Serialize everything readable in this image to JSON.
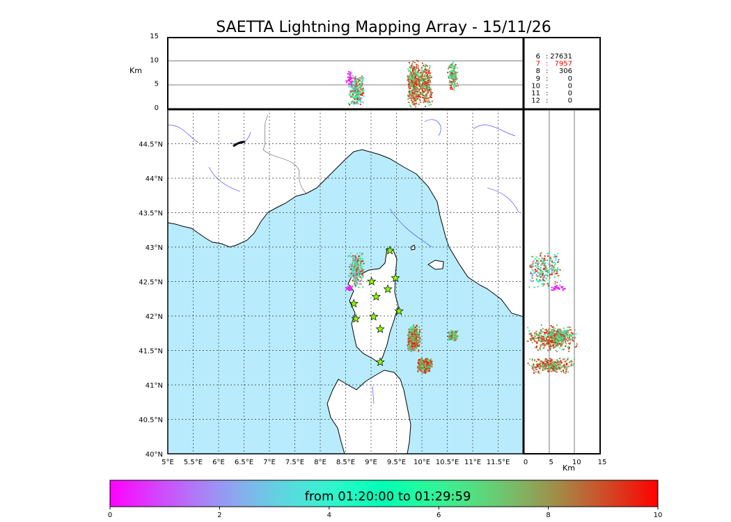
{
  "chart_data": {
    "type": "scatter",
    "title": "SAETTA Lightning Mapping Array - 15/11/26",
    "map": {
      "lon_range": [
        5,
        12
      ],
      "lat_range": [
        40,
        45
      ],
      "lon_ticks": [
        "5°E",
        "5.5°E",
        "6°E",
        "6.5°E",
        "7°E",
        "7.5°E",
        "8°E",
        "8.5°E",
        "9°E",
        "9.5°E",
        "10°E",
        "10.5°E",
        "11°E",
        "11.5°E"
      ],
      "lat_ticks": [
        "40°N",
        "40.5°N",
        "41°N",
        "41.5°N",
        "42°N",
        "42.5°N",
        "43°N",
        "43.5°N",
        "44°N",
        "44.5°N"
      ],
      "grid": true
    },
    "altitude": {
      "range_km": [
        0,
        15
      ],
      "ticks": [
        "0",
        "5",
        "10",
        "15"
      ],
      "label": "Km"
    },
    "stations": [
      [
        9.37,
        42.95
      ],
      [
        9.48,
        42.55
      ],
      [
        9.01,
        42.5
      ],
      [
        9.33,
        42.39
      ],
      [
        9.1,
        42.28
      ],
      [
        8.66,
        42.18
      ],
      [
        9.55,
        42.07
      ],
      [
        9.05,
        41.99
      ],
      [
        8.7,
        41.96
      ],
      [
        9.18,
        41.81
      ],
      [
        9.18,
        41.33
      ]
    ],
    "clusters": [
      {
        "lon": [
          8.55,
          8.85
        ],
        "lat": [
          42.4,
          42.95
        ],
        "alt": [
          1,
          7
        ],
        "time": [
          0,
          10
        ],
        "n": 260
      },
      {
        "lon": [
          8.5,
          8.62
        ],
        "lat": [
          42.38,
          42.45
        ],
        "alt": [
          5,
          8
        ],
        "time": [
          0,
          0.6
        ],
        "n": 30
      },
      {
        "lon": [
          9.7,
          9.95
        ],
        "lat": [
          41.5,
          41.87
        ],
        "alt": [
          1,
          10
        ],
        "time": [
          5,
          10
        ],
        "n": 420
      },
      {
        "lon": [
          9.9,
          10.2
        ],
        "lat": [
          41.18,
          41.4
        ],
        "alt": [
          1,
          10
        ],
        "time": [
          5,
          10
        ],
        "n": 300
      },
      {
        "lon": [
          10.5,
          10.7
        ],
        "lat": [
          41.65,
          41.8
        ],
        "alt": [
          4,
          10
        ],
        "time": [
          3,
          10
        ],
        "n": 160
      }
    ],
    "counts_legend": [
      {
        "label": "6",
        "value": "27631",
        "highlight": false
      },
      {
        "label": "7",
        "value": "7957",
        "highlight": true
      },
      {
        "label": "8",
        "value": "306",
        "highlight": false
      },
      {
        "label": "9",
        "value": "0",
        "highlight": false
      },
      {
        "label": "10",
        "value": "0",
        "highlight": false
      },
      {
        "label": "11",
        "value": "0",
        "highlight": false
      },
      {
        "label": "12",
        "value": "0",
        "highlight": false
      }
    ],
    "colorbar": {
      "range": [
        0,
        10
      ],
      "ticks": [
        "0",
        "2",
        "4",
        "6",
        "8",
        "10"
      ],
      "label": "from 01:20:00 to 01:29:59",
      "colormap": "rainbow"
    },
    "colors": {
      "sea": "#b8ecfc",
      "land": "#ffffff",
      "river": "#3333ff",
      "highlight": "#ff0000",
      "star": "#88ff00"
    }
  }
}
